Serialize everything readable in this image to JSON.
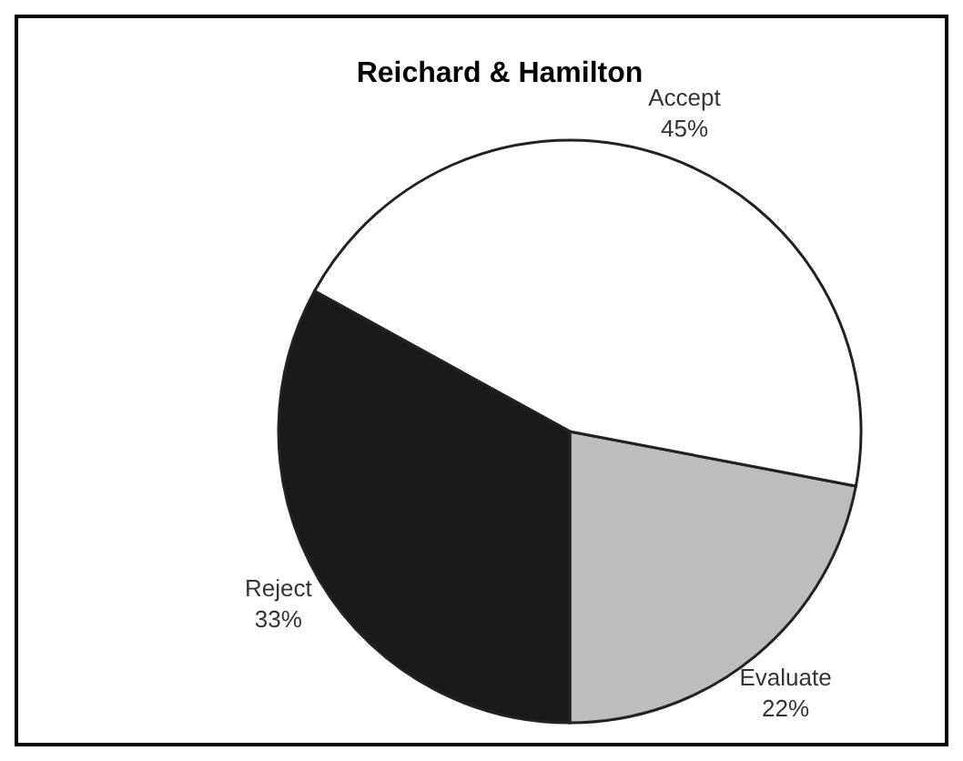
{
  "chart_data": {
    "type": "pie",
    "title": "Reichard & Hamilton",
    "categories": [
      "Evaluate",
      "Accept",
      "Reject"
    ],
    "values": [
      22,
      45,
      33
    ],
    "colors": [
      "#bdbdbd",
      "#ffffff",
      "#1a1a1a"
    ],
    "value_labels": [
      "22%",
      "45%",
      "33%"
    ]
  }
}
